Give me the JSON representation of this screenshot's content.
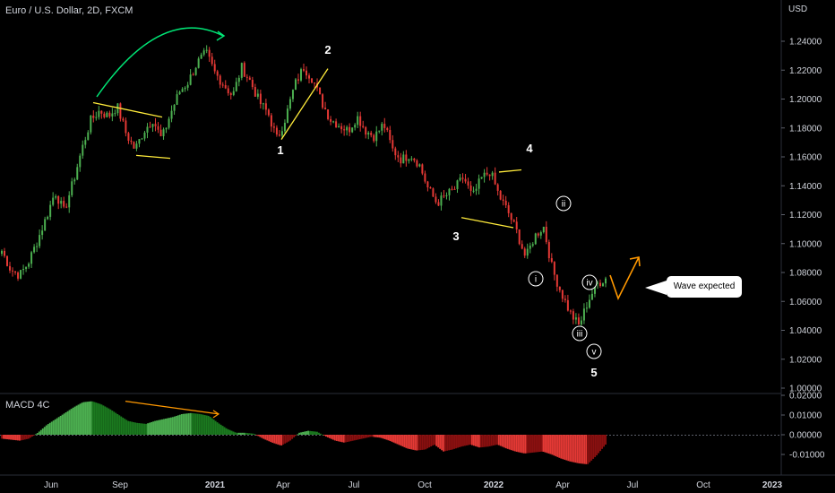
{
  "header": {
    "title": "Euro / U.S. Dollar, 2D, FXCM",
    "currency": "USD",
    "macd_label": "MACD 4C"
  },
  "annotations": {
    "callout": "Wave expected",
    "waves": [
      "1",
      "2",
      "3",
      "4",
      "5"
    ],
    "subwaves": [
      "i",
      "ii",
      "iii",
      "iv",
      "v"
    ]
  },
  "colors": {
    "up": "#4caf50",
    "down": "#e53935",
    "annot_yellow": "#ffeb3b",
    "annot_green": "#00e676",
    "annot_orange": "#ff9800",
    "macd_pos_bright": "#4caf50",
    "macd_pos_dark": "#1b7a1f",
    "macd_neg_bright": "#e53935",
    "macd_neg_dark": "#8b1010"
  },
  "chart_data": [
    {
      "type": "candlestick",
      "ylabel": "USD",
      "ylim": [
        1.0,
        1.25
      ],
      "yticks": [
        "1.24000",
        "1.22000",
        "1.20000",
        "1.18000",
        "1.16000",
        "1.14000",
        "1.12000",
        "1.10000",
        "1.08000",
        "1.06000",
        "1.04000",
        "1.02000",
        "1.00000"
      ],
      "xticks": [
        "Jun",
        "Sep",
        "2021",
        "Apr",
        "Jul",
        "Oct",
        "2022",
        "Apr",
        "Jul",
        "Oct",
        "2023"
      ],
      "close_path": [
        1.095,
        1.082,
        1.078,
        1.087,
        1.102,
        1.118,
        1.136,
        1.122,
        1.142,
        1.165,
        1.185,
        1.192,
        1.188,
        1.195,
        1.176,
        1.165,
        1.178,
        1.186,
        1.172,
        1.19,
        1.205,
        1.212,
        1.225,
        1.232,
        1.218,
        1.21,
        1.202,
        1.222,
        1.212,
        1.198,
        1.19,
        1.172,
        1.188,
        1.21,
        1.222,
        1.214,
        1.198,
        1.186,
        1.182,
        1.178,
        1.188,
        1.178,
        1.174,
        1.183,
        1.165,
        1.158,
        1.162,
        1.155,
        1.138,
        1.128,
        1.133,
        1.138,
        1.146,
        1.132,
        1.145,
        1.15,
        1.133,
        1.122,
        1.108,
        1.09,
        1.105,
        1.112,
        1.082,
        1.066,
        1.052,
        1.043,
        1.06,
        1.072,
        1.076
      ],
      "waves": [
        {
          "label": "1",
          "value": 1.172
        },
        {
          "label": "2",
          "value": 1.222
        },
        {
          "label": "3",
          "value": 1.118
        },
        {
          "label": "4",
          "value": 1.151
        },
        {
          "label": "5",
          "value": 1.035
        }
      ],
      "subwaves": [
        {
          "label": "i",
          "value": 1.084
        },
        {
          "label": "ii",
          "value": 1.115
        },
        {
          "label": "iii",
          "value": 1.043
        },
        {
          "label": "iv",
          "value": 1.078
        },
        {
          "label": "v",
          "value": 1.035
        }
      ]
    },
    {
      "type": "bar",
      "ylabel": "MACD 4C",
      "ylim": [
        -0.024,
        0.02
      ],
      "yticks": [
        "0.02000",
        "0.01000",
        "0.00000",
        "-0.01000"
      ],
      "histogram_path": [
        -0.002,
        -0.0025,
        -0.003,
        -0.002,
        0.001,
        0.005,
        0.008,
        0.011,
        0.014,
        0.0165,
        0.017,
        0.0155,
        0.013,
        0.01,
        0.007,
        0.006,
        0.0055,
        0.007,
        0.008,
        0.009,
        0.0105,
        0.011,
        0.0105,
        0.0095,
        0.006,
        0.003,
        0.001,
        0.001,
        0.0005,
        -0.002,
        -0.004,
        -0.0055,
        -0.003,
        0.001,
        0.002,
        0.0015,
        -0.001,
        -0.003,
        -0.004,
        -0.003,
        -0.002,
        -0.001,
        -0.0015,
        -0.003,
        -0.005,
        -0.007,
        -0.008,
        -0.0075,
        -0.005,
        -0.0085,
        -0.0075,
        -0.006,
        -0.005,
        -0.0065,
        -0.006,
        -0.005,
        -0.007,
        -0.0085,
        -0.0095,
        -0.009,
        -0.0085,
        -0.01,
        -0.012,
        -0.0135,
        -0.0145,
        -0.015,
        -0.0105,
        -0.005
      ]
    }
  ]
}
